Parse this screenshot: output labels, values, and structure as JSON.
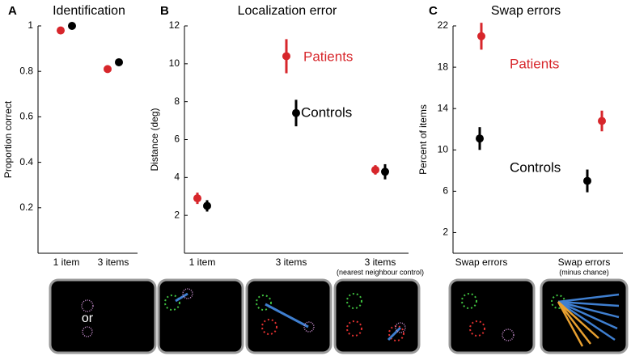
{
  "chart_data": [
    {
      "type": "dot",
      "label": "A",
      "title": "Identification",
      "ylabel": "Proportion correct",
      "categories": [
        "1 item",
        "3 items"
      ],
      "ylim": [
        0,
        1
      ],
      "yticks": [
        0.2,
        0.4,
        0.6,
        0.8,
        1
      ],
      "series": [
        {
          "color": "#d7262b",
          "values": [
            0.98,
            0.81
          ]
        },
        {
          "color": "#000000",
          "values": [
            1.0,
            0.84
          ]
        }
      ]
    },
    {
      "type": "dot",
      "label": "B",
      "title": "Localization error",
      "ylabel": "Distance (deg)",
      "categories": [
        "1 item",
        "3 items",
        "3 items"
      ],
      "category_notes": [
        null,
        null,
        "(nearest neighbour control)"
      ],
      "ylim": [
        0,
        12
      ],
      "yticks": [
        2,
        4,
        6,
        8,
        10,
        12
      ],
      "series": [
        {
          "name": "Patients",
          "color": "#d7262b",
          "values": [
            2.9,
            10.4,
            4.4
          ],
          "errors": [
            0.3,
            0.9,
            0.25
          ]
        },
        {
          "name": "Controls",
          "color": "#000000",
          "values": [
            2.5,
            7.4,
            4.3
          ],
          "errors": [
            0.3,
            0.7,
            0.4
          ]
        }
      ]
    },
    {
      "type": "dot",
      "label": "C",
      "title": "Swap errors",
      "ylabel": "Percent of items",
      "categories": [
        "Swap errors",
        "Swap errors"
      ],
      "category_notes": [
        null,
        "(minus chance)"
      ],
      "ylim": [
        0,
        22
      ],
      "yticks": [
        2,
        6,
        10,
        14,
        18,
        22
      ],
      "series": [
        {
          "name": "Patients",
          "color": "#d7262b",
          "values": [
            21,
            12.8
          ],
          "errors": [
            1.3,
            1.0
          ]
        },
        {
          "name": "Controls",
          "color": "#000000",
          "values": [
            11.1,
            7.0
          ],
          "errors": [
            1.1,
            1.1
          ]
        }
      ]
    }
  ],
  "illustration_text": "or"
}
